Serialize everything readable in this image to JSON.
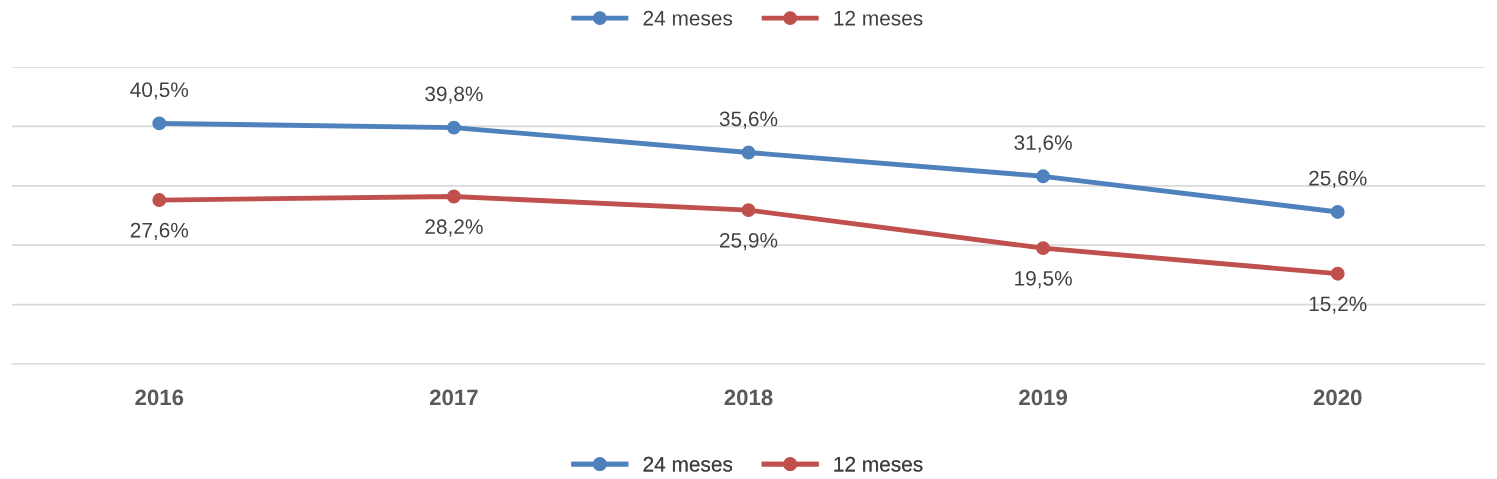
{
  "chart_data": {
    "type": "line",
    "categories": [
      "2016",
      "2017",
      "2018",
      "2019",
      "2020"
    ],
    "series": [
      {
        "name": "24 meses",
        "color": "#4f81bd",
        "values": [
          40.5,
          39.8,
          35.6,
          31.6,
          25.6
        ],
        "value_labels": [
          "40,5%",
          "39,8%",
          "35,6%",
          "31,6%",
          "25,6%"
        ]
      },
      {
        "name": "12 meses",
        "color": "#c0504d",
        "values": [
          27.6,
          28.2,
          25.9,
          19.5,
          15.2
        ],
        "value_labels": [
          "27,6%",
          "28,2%",
          "25,9%",
          "19,5%",
          "15,2%"
        ]
      }
    ],
    "ylim": [
      0,
      50
    ],
    "yticks": [
      {
        "value": 0,
        "label": null
      },
      {
        "value": 10,
        "label": null
      },
      {
        "value": 20,
        "label": null
      },
      {
        "value": 30,
        "label": null
      },
      {
        "value": 40,
        "label": null
      },
      {
        "value": 50,
        "label": null
      }
    ],
    "tick_labels": "x",
    "grid": "y",
    "legend": [
      "top",
      "bottom"
    ],
    "marker": "circle",
    "line_style": "solid"
  }
}
